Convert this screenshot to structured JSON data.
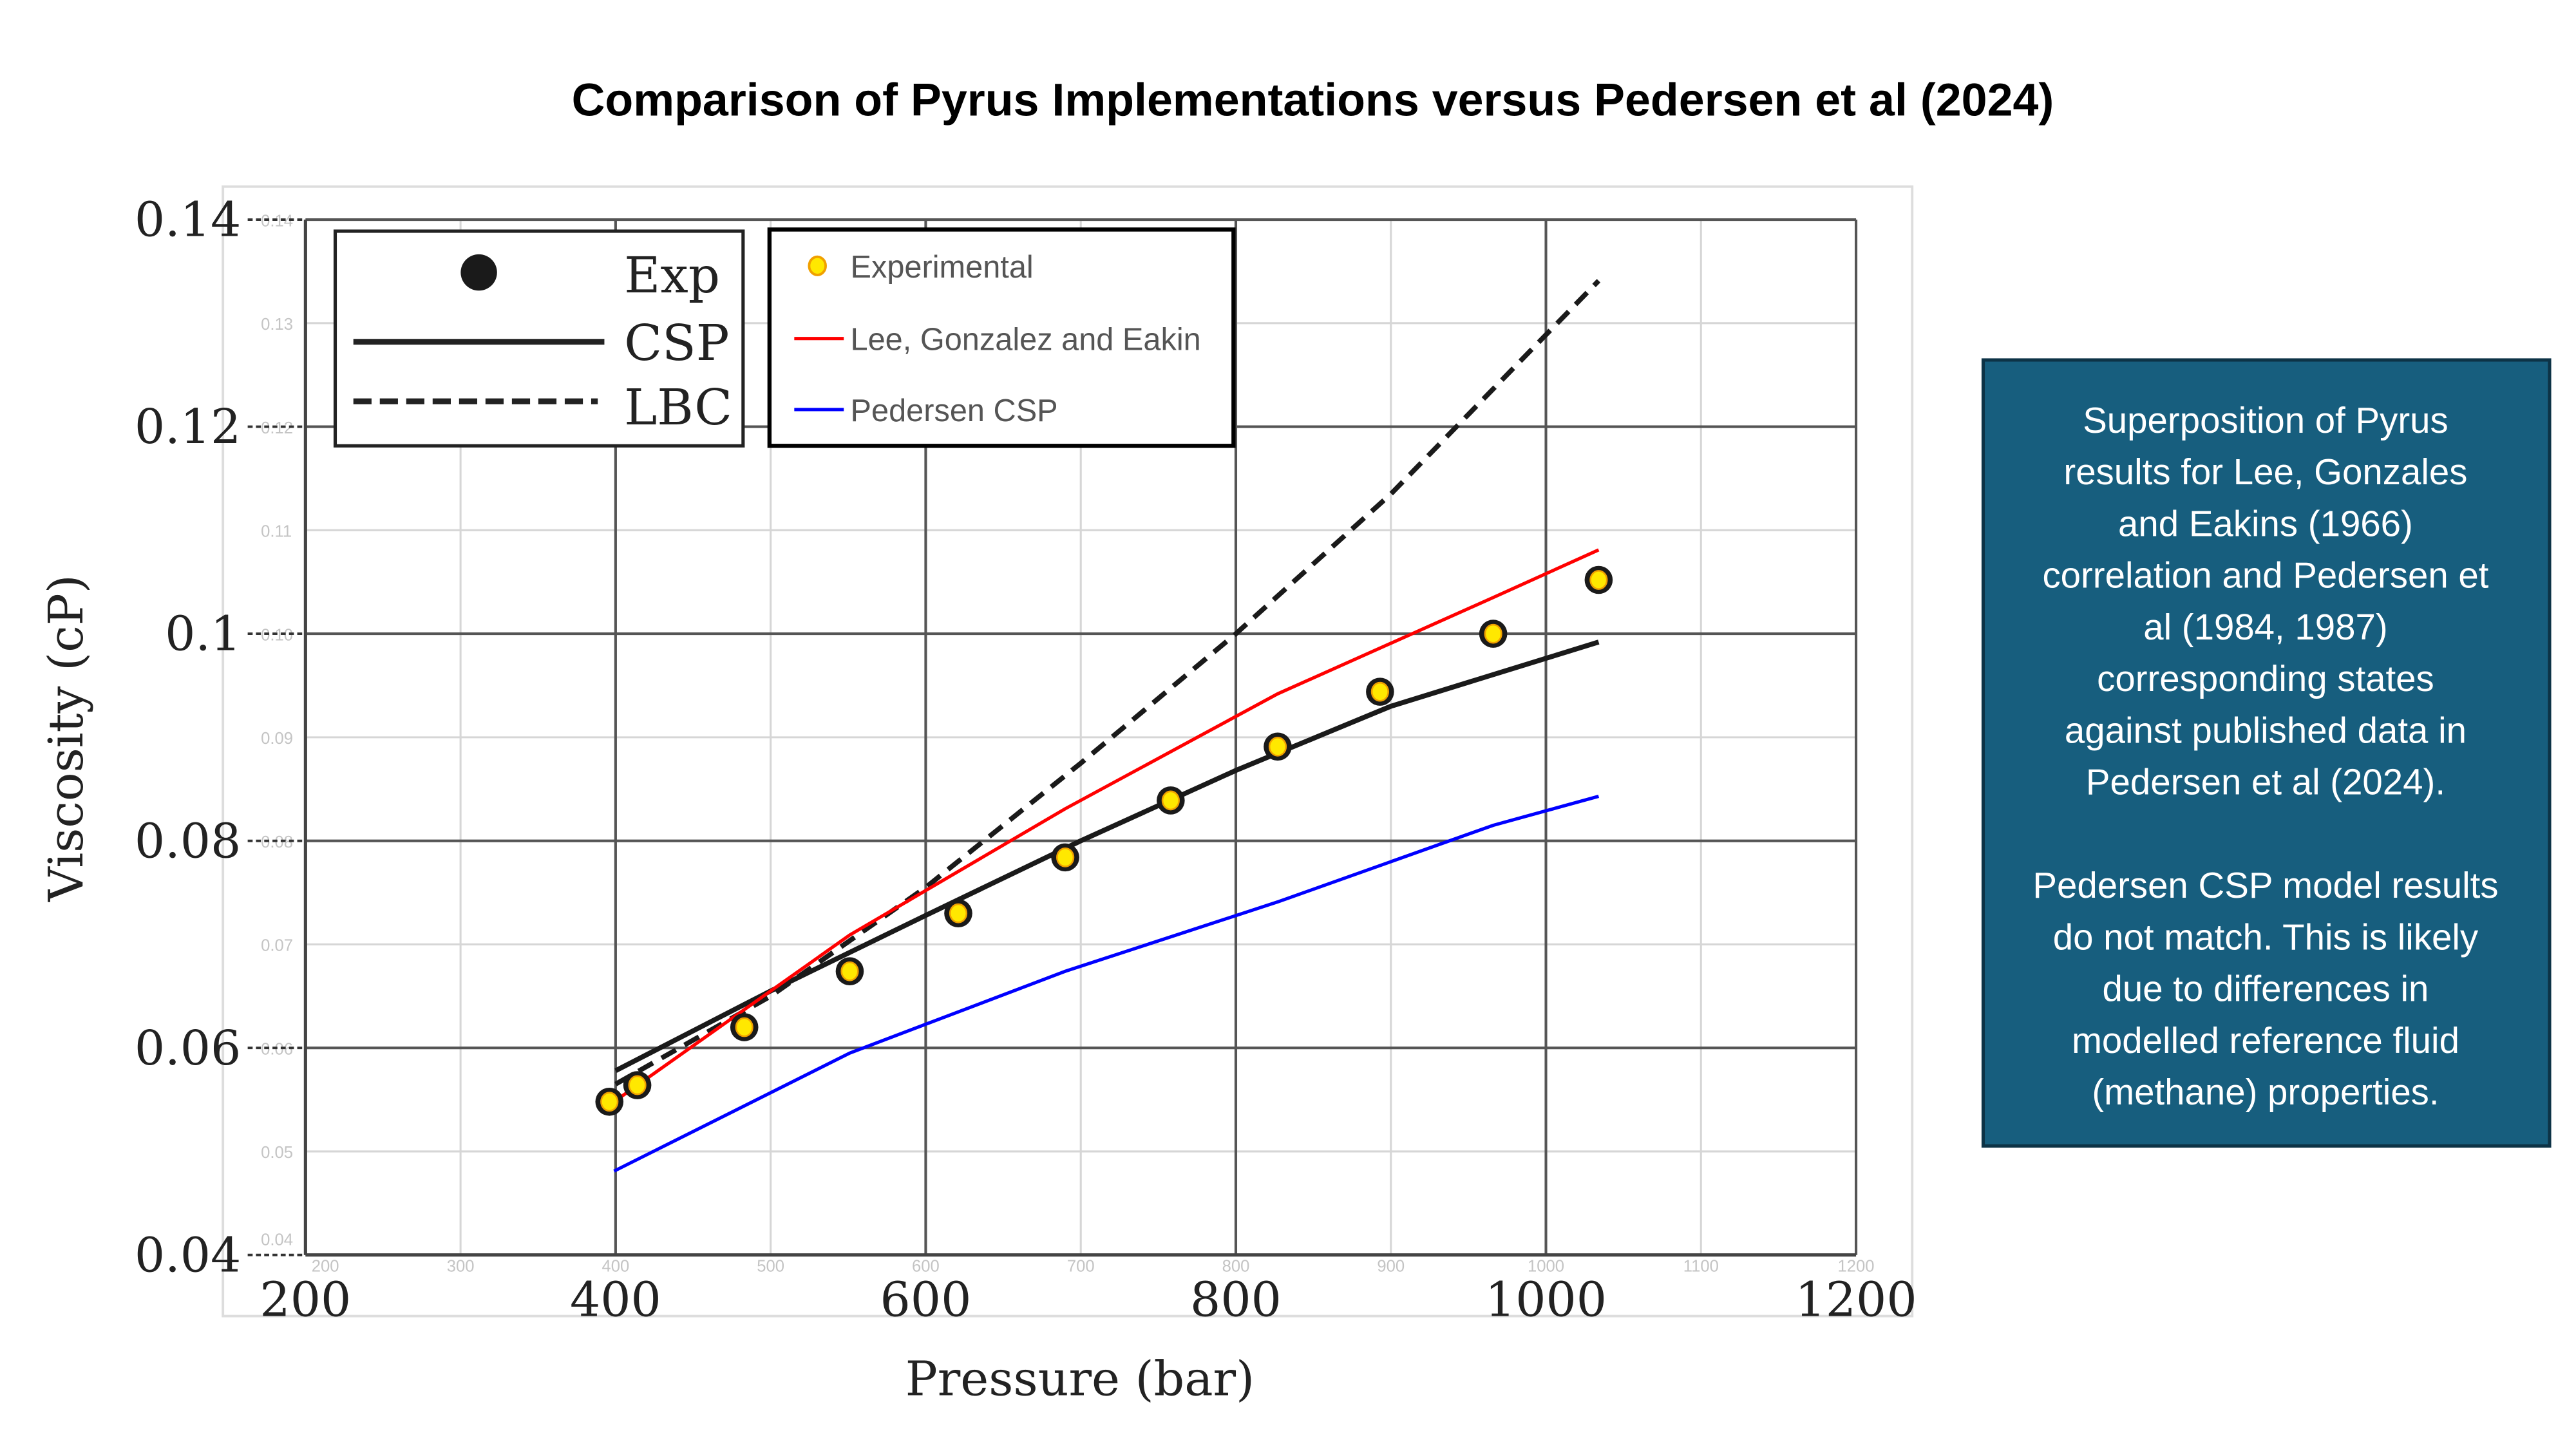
{
  "title": "Comparison of Pyrus Implementations versus Pedersen et al (2024)",
  "chart_data": {
    "type": "line",
    "xlabel": "Pressure (bar)",
    "ylabel": "Viscosity (cP)",
    "xlim": [
      200,
      1200
    ],
    "ylim": [
      0.04,
      0.14
    ],
    "xticks": [
      "200",
      "400",
      "600",
      "800",
      "1000",
      "1200"
    ],
    "yticks": [
      "0.04",
      "0.06",
      "0.08",
      "0.1",
      "0.12",
      "0.14"
    ],
    "minor_xticks": [
      "200",
      "300",
      "400",
      "500",
      "600",
      "700",
      "800",
      "900",
      "1000",
      "1100",
      "1200"
    ],
    "minor_yticks": [
      "0.04",
      "0.05",
      "0.06",
      "0.07",
      "0.08",
      "0.09",
      "0.10",
      "0.11",
      "0.12",
      "0.13",
      "0.14"
    ],
    "grid": true,
    "legend_original": {
      "placement": "top-left",
      "entries": [
        {
          "label": "Exp",
          "style": "marker"
        },
        {
          "label": "CSP",
          "style": "solid"
        },
        {
          "label": "LBC",
          "style": "dashed"
        }
      ]
    },
    "legend_overlay": {
      "placement": "top-left",
      "entries": [
        {
          "label": "Experimental",
          "color": "#FFE800"
        },
        {
          "label": "Lee, Gonzalez and Eakin",
          "color": "#FF0000"
        },
        {
          "label": "Pedersen CSP",
          "color": "#0000FF"
        }
      ]
    },
    "series": [
      {
        "name": "Exp",
        "kind": "scatter",
        "color": "#1a1a1a",
        "x": [
          396,
          414,
          483,
          551,
          621,
          690,
          758,
          827,
          893,
          966,
          1034
        ],
        "y": [
          0.0548,
          0.0564,
          0.062,
          0.0674,
          0.073,
          0.0784,
          0.0839,
          0.0891,
          0.0944,
          0.1,
          0.1052
        ]
      },
      {
        "name": "CSP",
        "kind": "solid",
        "color": "#1a1a1a",
        "x": [
          400,
          500,
          600,
          700,
          800,
          900,
          1034
        ],
        "y": [
          0.0578,
          0.0655,
          0.0728,
          0.08,
          0.0868,
          0.093,
          0.0992
        ]
      },
      {
        "name": "LBC",
        "kind": "dashed",
        "color": "#1a1a1a",
        "x": [
          400,
          500,
          600,
          700,
          800,
          900,
          1034
        ],
        "y": [
          0.0565,
          0.065,
          0.0755,
          0.0875,
          0.1,
          0.1135,
          0.1341
        ]
      },
      {
        "name": "Lee, Gonzalez and Eakin",
        "kind": "solid",
        "color": "#FF0000",
        "x": [
          399,
          551,
          690,
          827,
          966,
          1034
        ],
        "y": [
          0.0548,
          0.0709,
          0.0831,
          0.0942,
          0.1035,
          0.1081
        ]
      },
      {
        "name": "Pedersen CSP",
        "kind": "solid",
        "color": "#0000FF",
        "x": [
          399,
          551,
          690,
          827,
          966,
          1034
        ],
        "y": [
          0.0481,
          0.0595,
          0.0674,
          0.0741,
          0.0815,
          0.0843
        ]
      }
    ]
  },
  "note": {
    "paragraph1": [
      "Superposition of Pyrus",
      "results for Lee, Gonzales",
      "and Eakins (1966)",
      "correlation and Pedersen et",
      "al (1984, 1987)",
      "corresponding states",
      "against published data in",
      "Pedersen et al (2024)."
    ],
    "paragraph2": [
      "Pedersen CSP model results",
      "do not match. This is likely",
      "due to differences in",
      "modelled reference fluid",
      "(methane) properties."
    ],
    "background": "#175E7E"
  }
}
